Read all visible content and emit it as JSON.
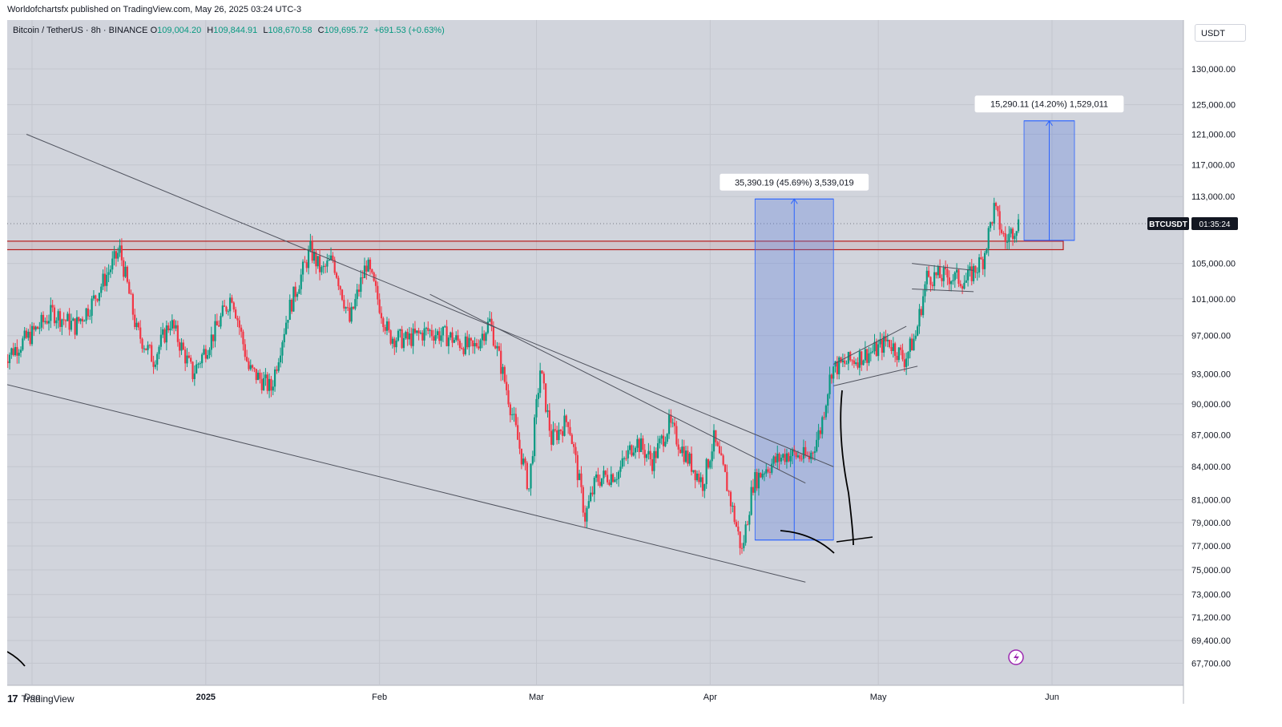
{
  "caption": "Worldofchartsfx published on TradingView.com, May 26, 2025 03:24 UTC-3",
  "symbol": {
    "name": "Bitcoin / TetherUS · 8h · BINANCE",
    "o_label": "O",
    "o": "109,004.20",
    "h_label": "H",
    "h": "109,844.91",
    "l_label": "L",
    "l": "108,670.58",
    "c_label": "C",
    "c": "109,695.72",
    "change": "+691.53 (+0.63%)"
  },
  "currency_button": "USDT",
  "footer": "TradingView",
  "colors": {
    "background": "#d1d4dc",
    "up": "#089981",
    "down": "#f23645",
    "resistance": "#b71c1c",
    "projection_fill": "#5b7bdc",
    "projection_line": "#2962ff"
  },
  "chart_data": {
    "type": "candlestick",
    "interval": "8h",
    "price_axis": {
      "ticks": [
        130000,
        125000,
        121000,
        117000,
        113000,
        105000,
        101000,
        97000,
        93000,
        90000,
        87000,
        84000,
        81000,
        79000,
        77000,
        75000,
        73000,
        71200,
        69400,
        67700
      ],
      "tick_labels": [
        "130,000.00",
        "125,000.00",
        "121,000.00",
        "117,000.00",
        "113,000.00",
        "105,000.00",
        "101,000.00",
        "97,000.00",
        "93,000.00",
        "90,000.00",
        "87,000.00",
        "84,000.00",
        "81,000.00",
        "79,000.00",
        "77,000.00",
        "75,000.00",
        "73,000.00",
        "71,200.00",
        "69,400.00",
        "67,700.00"
      ],
      "scale": "log"
    },
    "time_axis": {
      "ticks": [
        "2024-12-01",
        "2025-01-01",
        "2025-02-01",
        "2025-03-01",
        "2025-04-01",
        "2025-05-01",
        "2025-06-01"
      ],
      "tick_labels": [
        "Dec",
        "2025",
        "Feb",
        "Mar",
        "Apr",
        "May",
        "Jun"
      ]
    },
    "last_price_label": {
      "symbol": "BTCUSDT",
      "countdown": "01:35:24",
      "price": 109695.72
    },
    "anchors": [
      [
        "2024-11-26",
        94500
      ],
      [
        "2024-12-01",
        97000
      ],
      [
        "2024-12-05",
        99500
      ],
      [
        "2024-12-09",
        98000
      ],
      [
        "2024-12-12",
        100500
      ],
      [
        "2024-12-17",
        106500
      ],
      [
        "2024-12-20",
        97500
      ],
      [
        "2024-12-23",
        94500
      ],
      [
        "2024-12-26",
        98500
      ],
      [
        "2024-12-30",
        93000
      ],
      [
        "2025-01-03",
        97500
      ],
      [
        "2025-01-06",
        101500
      ],
      [
        "2025-01-09",
        93500
      ],
      [
        "2025-01-13",
        91500
      ],
      [
        "2025-01-16",
        99500
      ],
      [
        "2025-01-20",
        106500
      ],
      [
        "2025-01-22",
        104000
      ],
      [
        "2025-01-24",
        105500
      ],
      [
        "2025-01-27",
        98500
      ],
      [
        "2025-01-30",
        105000
      ],
      [
        "2025-02-03",
        97000
      ],
      [
        "2025-02-06",
        96500
      ],
      [
        "2025-02-10",
        97500
      ],
      [
        "2025-02-14",
        96800
      ],
      [
        "2025-02-18",
        95500
      ],
      [
        "2025-02-21",
        98500
      ],
      [
        "2025-02-24",
        91500
      ],
      [
        "2025-02-26",
        86500
      ],
      [
        "2025-02-28",
        82000
      ],
      [
        "2025-03-02",
        93500
      ],
      [
        "2025-03-04",
        86500
      ],
      [
        "2025-03-07",
        88500
      ],
      [
        "2025-03-10",
        79500
      ],
      [
        "2025-03-12",
        82800
      ],
      [
        "2025-03-16",
        83500
      ],
      [
        "2025-03-19",
        86500
      ],
      [
        "2025-03-22",
        84500
      ],
      [
        "2025-03-25",
        88000
      ],
      [
        "2025-03-28",
        85000
      ],
      [
        "2025-03-31",
        82500
      ],
      [
        "2025-04-02",
        86500
      ],
      [
        "2025-04-04",
        83000
      ],
      [
        "2025-04-07",
        76500
      ],
      [
        "2025-04-09",
        82500
      ],
      [
        "2025-04-11",
        83800
      ],
      [
        "2025-04-15",
        85200
      ],
      [
        "2025-04-19",
        84800
      ],
      [
        "2025-04-21",
        87500
      ],
      [
        "2025-04-23",
        93500
      ],
      [
        "2025-04-27",
        94500
      ],
      [
        "2025-05-01",
        95500
      ],
      [
        "2025-05-03",
        96500
      ],
      [
        "2025-05-06",
        94500
      ],
      [
        "2025-05-08",
        97000
      ],
      [
        "2025-05-10",
        103500
      ],
      [
        "2025-05-14",
        103500
      ],
      [
        "2025-05-17",
        103000
      ],
      [
        "2025-05-20",
        105500
      ],
      [
        "2025-05-22",
        111500
      ],
      [
        "2025-05-24",
        107500
      ],
      [
        "2025-05-26",
        109700
      ]
    ],
    "resistance_zone": {
      "from": "2024-11-26",
      "to": "2025-06-03",
      "low": 106600,
      "high": 107600
    },
    "trendlines": [
      {
        "from": [
          "2024-11-30",
          121000
        ],
        "to": [
          "2025-04-23",
          84000
        ]
      },
      {
        "from": [
          "2024-11-26",
          92000
        ],
        "to": [
          "2025-04-18",
          74000
        ]
      },
      {
        "from": [
          "2025-02-10",
          101500
        ],
        "to": [
          "2025-04-18",
          82500
        ]
      },
      {
        "from": [
          "2025-04-23",
          94000
        ],
        "to": [
          "2025-05-06",
          98000
        ]
      },
      {
        "from": [
          "2025-04-23",
          91800
        ],
        "to": [
          "2025-05-08",
          93800
        ]
      },
      {
        "from": [
          "2025-05-07",
          105000
        ],
        "to": [
          "2025-05-18",
          104200
        ]
      },
      {
        "from": [
          "2025-05-07",
          102100
        ],
        "to": [
          "2025-05-18",
          101800
        ]
      }
    ],
    "projections": [
      {
        "from": "2025-04-09",
        "to": "2025-04-23",
        "low": 77500,
        "high": 112700,
        "label": "35,390.19 (45.69%) 3,539,019"
      },
      {
        "from": "2025-05-27",
        "to": "2025-06-05",
        "low": 107700,
        "high": 122800,
        "label": "15,290.11 (14.20%) 1,529,011"
      }
    ]
  }
}
